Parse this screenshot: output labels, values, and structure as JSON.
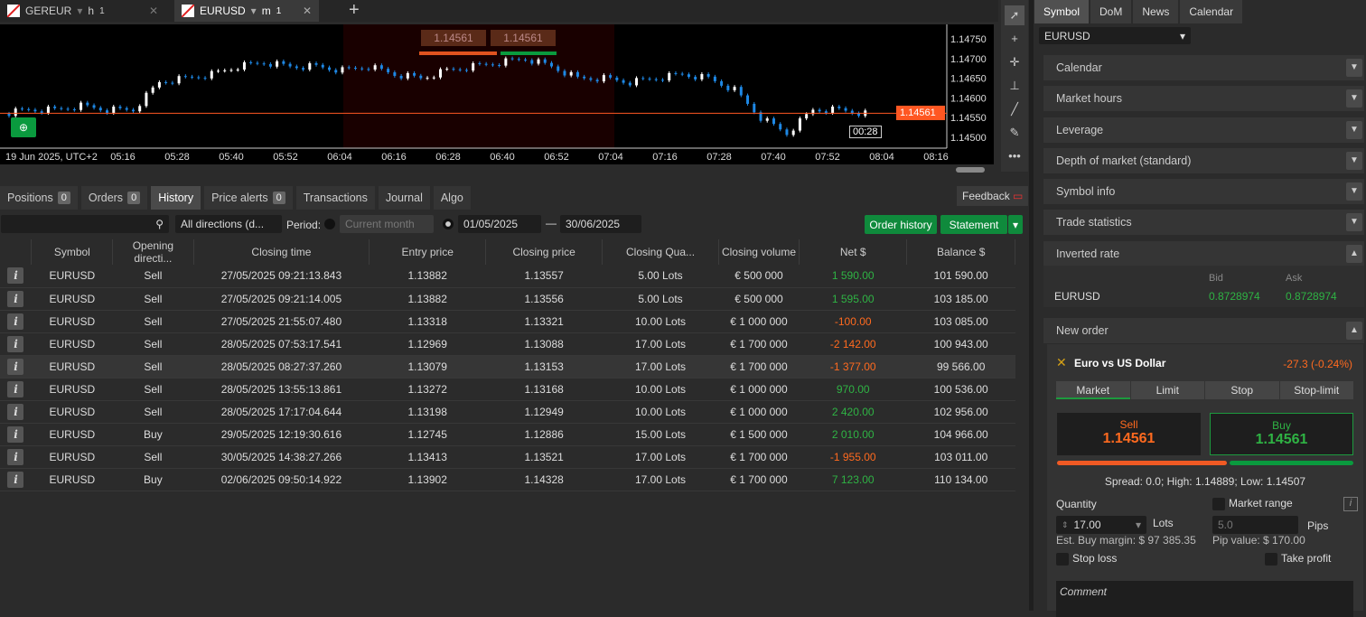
{
  "chart_tabs": [
    {
      "symbol": "GEREUR",
      "tf": "h",
      "tf_sub": "1"
    },
    {
      "symbol": "EURUSD",
      "tf": "m",
      "tf_sub": "1"
    }
  ],
  "chart": {
    "price_labels": [
      "1.14750",
      "1.14700",
      "1.14650",
      "1.14600",
      "1.14550",
      "1.14500"
    ],
    "current_price": "1.14561",
    "time_labels": [
      "19 Jun 2025, UTC+2",
      "05:16",
      "05:28",
      "05:40",
      "05:52",
      "06:04",
      "06:16",
      "06:28",
      "06:40",
      "06:52",
      "07:04",
      "07:16",
      "07:28",
      "07:40",
      "07:52",
      "08:04",
      "08:16"
    ],
    "countdown": "00:28",
    "sell_quick": "1.14561",
    "buy_quick": "1.14561",
    "closes": [
      1.1456,
      1.1457,
      1.1457,
      1.1458,
      1.1457,
      1.1457,
      1.1464,
      1.1465,
      1.1466,
      1.1468,
      1.1469,
      1.1468,
      1.1468,
      1.1467,
      1.1468,
      1.1466,
      1.1465,
      1.1467,
      1.1468,
      1.1469,
      1.147,
      1.1468,
      1.1465,
      1.1465,
      1.1464,
      1.1465,
      1.1466,
      1.1465,
      1.1462,
      1.1455,
      1.1451,
      1.1457,
      1.1457,
      1.1456
    ],
    "colors": {
      "up": "#ffffff",
      "down": "#1e88e5",
      "price_line": "#ff5722"
    }
  },
  "tools": [
    "cursor-icon",
    "crosshair-icon",
    "cross-icon",
    "add-line-icon",
    "trendline-icon",
    "pen-icon",
    "more-icon"
  ],
  "bottom_tabs": [
    {
      "label": "Positions",
      "badge": "0"
    },
    {
      "label": "Orders",
      "badge": "0"
    },
    {
      "label": "History"
    },
    {
      "label": "Price alerts",
      "badge": "0"
    },
    {
      "label": "Transactions"
    },
    {
      "label": "Journal"
    },
    {
      "label": "Algo"
    }
  ],
  "feedback": "Feedback",
  "filters": {
    "search": "",
    "direction": "All directions (d...",
    "period_label": "Period:",
    "period": "Current month",
    "from": "01/05/2025",
    "to": "30/06/2025",
    "order_history": "Order history",
    "statement": "Statement"
  },
  "history": {
    "columns": [
      "Symbol",
      "Opening directi...",
      "Closing time",
      "Entry price",
      "Closing price",
      "Closing Qua...",
      "Closing volume",
      "Net $",
      "Balance $"
    ],
    "rows": [
      [
        "EURUSD",
        "Sell",
        "27/05/2025 09:21:13.843",
        "1.13882",
        "1.13557",
        "5.00 Lots",
        "€ 500 000",
        "1 590.00",
        "101 590.00"
      ],
      [
        "EURUSD",
        "Sell",
        "27/05/2025 09:21:14.005",
        "1.13882",
        "1.13556",
        "5.00 Lots",
        "€ 500 000",
        "1 595.00",
        "103 185.00"
      ],
      [
        "EURUSD",
        "Sell",
        "27/05/2025 21:55:07.480",
        "1.13318",
        "1.13321",
        "10.00 Lots",
        "€ 1 000 000",
        "-100.00",
        "103 085.00"
      ],
      [
        "EURUSD",
        "Sell",
        "28/05/2025 07:53:17.541",
        "1.12969",
        "1.13088",
        "17.00 Lots",
        "€ 1 700 000",
        "-2 142.00",
        "100 943.00"
      ],
      [
        "EURUSD",
        "Sell",
        "28/05/2025 08:27:37.260",
        "1.13079",
        "1.13153",
        "17.00 Lots",
        "€ 1 700 000",
        "-1 377.00",
        "99 566.00"
      ],
      [
        "EURUSD",
        "Sell",
        "28/05/2025 13:55:13.861",
        "1.13272",
        "1.13168",
        "10.00 Lots",
        "€ 1 000 000",
        "970.00",
        "100 536.00"
      ],
      [
        "EURUSD",
        "Sell",
        "28/05/2025 17:17:04.644",
        "1.13198",
        "1.12949",
        "10.00 Lots",
        "€ 1 000 000",
        "2 420.00",
        "102 956.00"
      ],
      [
        "EURUSD",
        "Buy",
        "29/05/2025 12:19:30.616",
        "1.12745",
        "1.12886",
        "15.00 Lots",
        "€ 1 500 000",
        "2 010.00",
        "104 966.00"
      ],
      [
        "EURUSD",
        "Sell",
        "30/05/2025 14:38:27.266",
        "1.13413",
        "1.13521",
        "17.00 Lots",
        "€ 1 700 000",
        "-1 955.00",
        "103 011.00"
      ],
      [
        "EURUSD",
        "Buy",
        "02/06/2025 09:50:14.922",
        "1.13902",
        "1.14328",
        "17.00 Lots",
        "€ 1 700 000",
        "7 123.00",
        "110 134.00"
      ]
    ]
  },
  "right": {
    "tabs": [
      "Symbol",
      "DoM",
      "News",
      "Calendar"
    ],
    "symbol": "EURUSD",
    "sections": [
      "Calendar",
      "Market hours",
      "Leverage",
      "Depth of market (standard)",
      "Symbol info",
      "Trade statistics",
      "Inverted rate"
    ],
    "inverted": {
      "bid_label": "Bid",
      "ask_label": "Ask",
      "symbol": "EURUSD",
      "bid": "0.8728974",
      "ask": "0.8728974"
    },
    "new_order": {
      "title": "New order",
      "name": "Euro vs US Dollar",
      "change": "-27.3 (-0.24%)",
      "types": [
        "Market",
        "Limit",
        "Stop",
        "Stop-limit"
      ],
      "sell_label": "Sell",
      "sell": "1.14561",
      "buy_label": "Buy",
      "buy": "1.14561",
      "spread": "Spread: 0.0; High: 1.14889; Low: 1.14507",
      "quantity_label": "Quantity",
      "quantity": "17.00",
      "lots": "Lots",
      "market_range": "Market range",
      "range": "5.0",
      "pips": "Pips",
      "margin": "Est. Buy margin: $ 97 385.35",
      "pip_value": "Pip value: $ 170.00",
      "stop_loss": "Stop loss",
      "take_profit": "Take profit",
      "comment_placeholder": "Comment"
    }
  }
}
